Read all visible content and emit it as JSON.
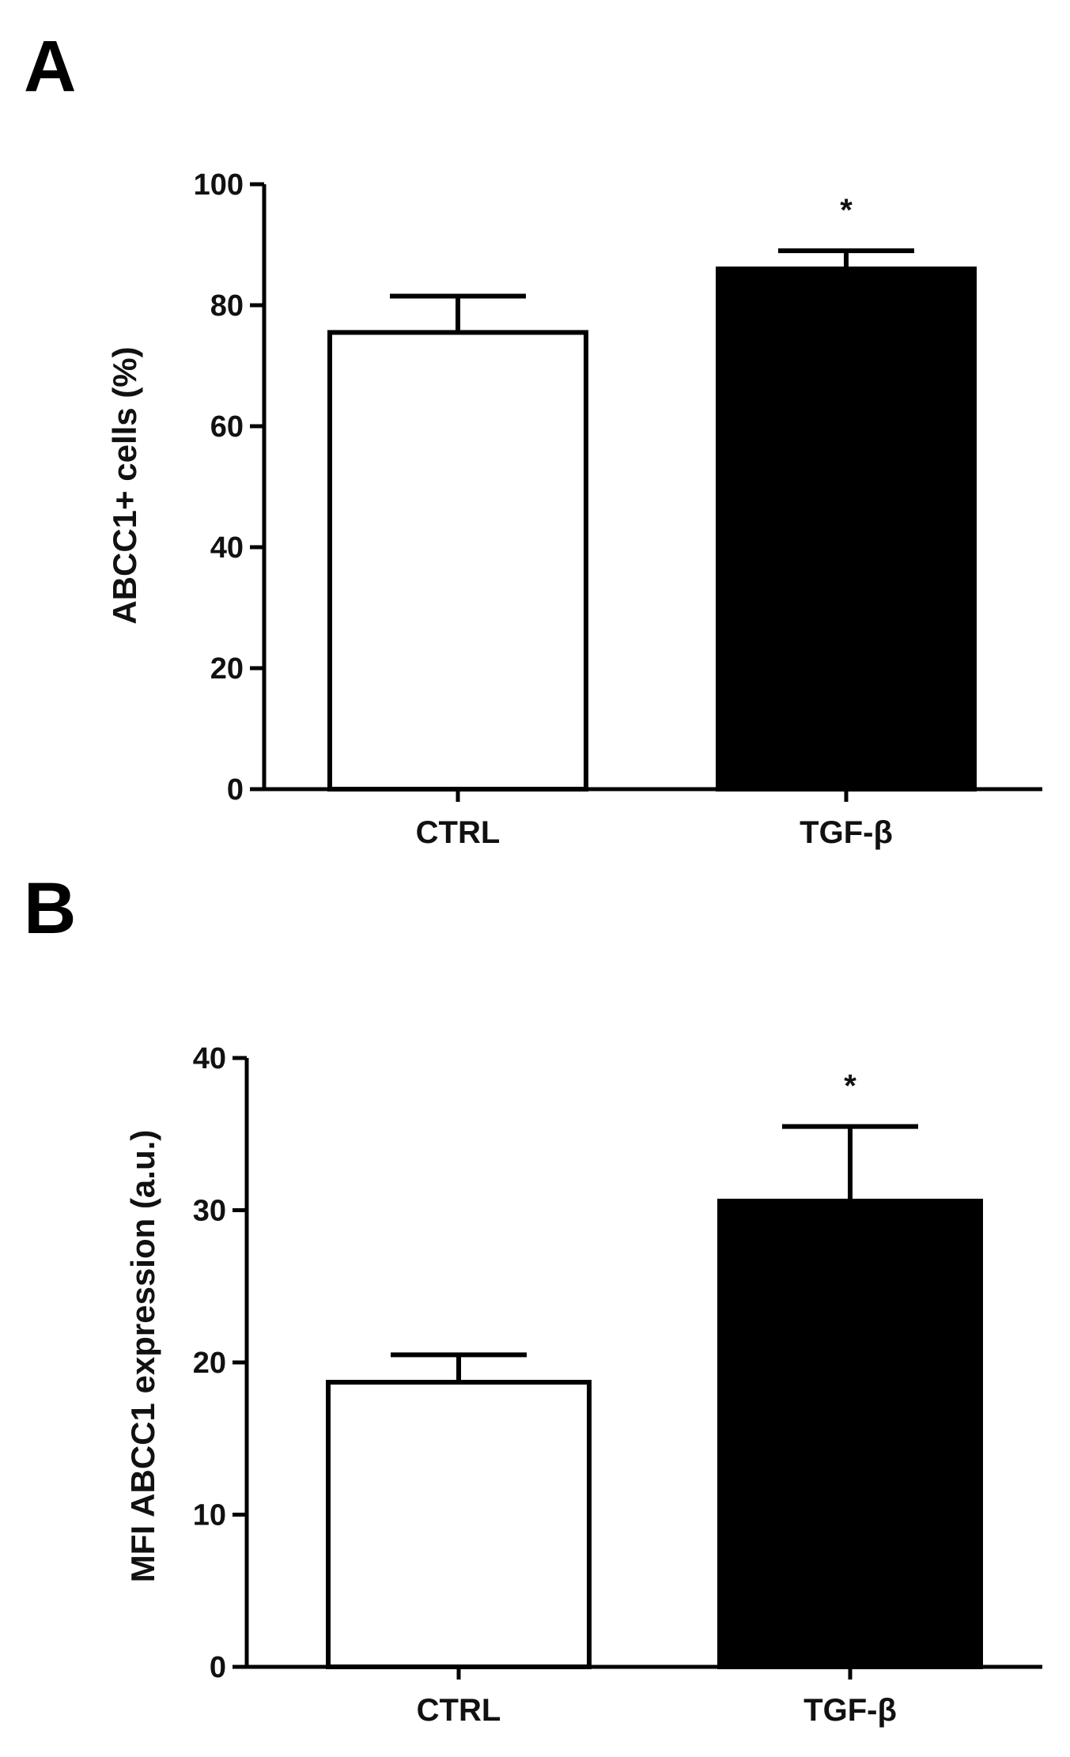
{
  "chart_data": [
    {
      "panel_label": "A",
      "type": "bar",
      "categories": [
        "CTRL",
        "TGF-β"
      ],
      "values": [
        75.5,
        86
      ],
      "errors": [
        6,
        3
      ],
      "bar_colors": [
        "#ffffff",
        "#000000"
      ],
      "bar_outline": "#000000",
      "significance": [
        "",
        "*"
      ],
      "ylabel": "ABCC1+ cells (%)",
      "ylim": [
        0,
        100
      ],
      "yticks": [
        "0",
        "20",
        "40",
        "60",
        "80",
        "100"
      ],
      "grid": false
    },
    {
      "panel_label": "B",
      "type": "bar",
      "categories": [
        "CTRL",
        "TGF-β"
      ],
      "values": [
        18.7,
        30.6
      ],
      "errors": [
        1.8,
        4.9
      ],
      "bar_colors": [
        "#ffffff",
        "#000000"
      ],
      "bar_outline": "#000000",
      "significance": [
        "",
        "*"
      ],
      "ylabel": "MFI ABCC1 expression (a.u.)",
      "ylim": [
        0,
        40
      ],
      "yticks": [
        "0",
        "10",
        "20",
        "30",
        "40"
      ],
      "grid": false
    }
  ]
}
